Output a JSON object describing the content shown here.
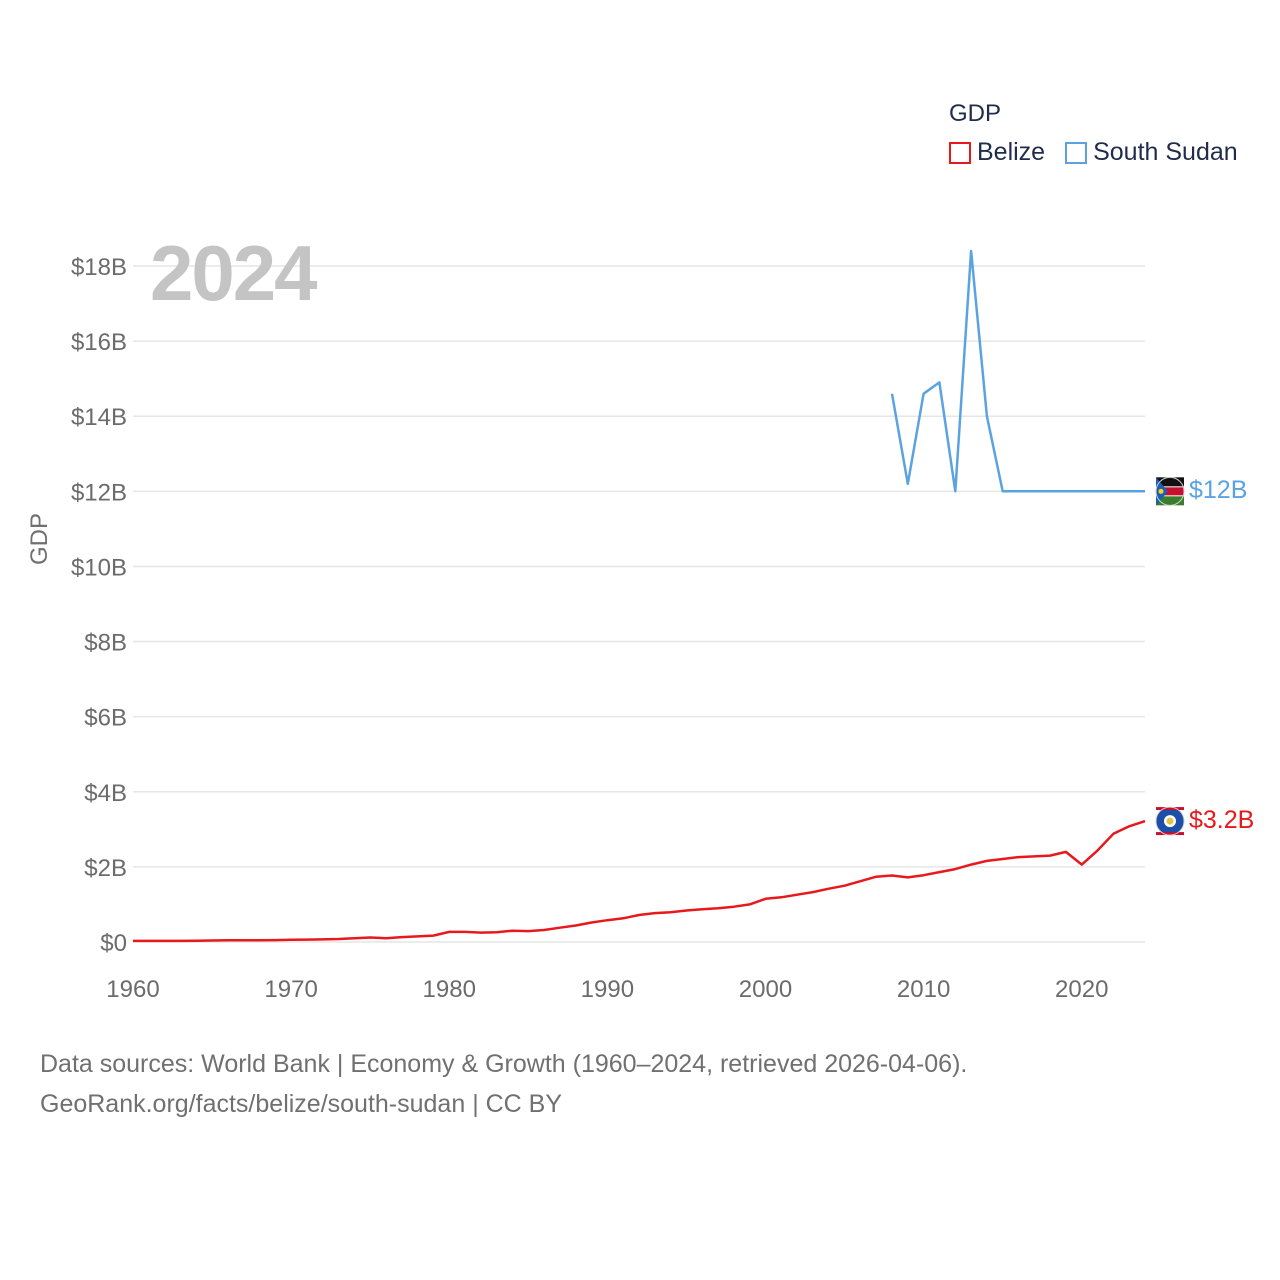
{
  "legend": {
    "title": "GDP",
    "items": [
      {
        "name": "Belize",
        "color": "#e8191c"
      },
      {
        "name": "South Sudan",
        "color": "#5ba3e0"
      }
    ]
  },
  "year_display": "2024",
  "footer": {
    "line1": "Data sources: World Bank | Economy & Growth (1960–2024, retrieved 2026-04-06).",
    "line2": "GeoRank.org/facts/belize/south-sudan | CC BY"
  },
  "chart_data": {
    "type": "line",
    "title": "GDP",
    "xlabel": "",
    "ylabel": "GDP",
    "xlim": [
      1960,
      2024
    ],
    "ylim": [
      0,
      18
    ],
    "y_unit": "billion USD",
    "x_ticks": [
      1960,
      1970,
      1980,
      1990,
      2000,
      2010,
      2020
    ],
    "y_ticks": [
      {
        "value": 0,
        "label": "$0"
      },
      {
        "value": 2,
        "label": "$2B"
      },
      {
        "value": 4,
        "label": "$4B"
      },
      {
        "value": 6,
        "label": "$6B"
      },
      {
        "value": 8,
        "label": "$8B"
      },
      {
        "value": 10,
        "label": "$10B"
      },
      {
        "value": 12,
        "label": "$12B"
      },
      {
        "value": 14,
        "label": "$14B"
      },
      {
        "value": 16,
        "label": "$16B"
      },
      {
        "value": 18,
        "label": "$18B"
      }
    ],
    "grid": true,
    "series": [
      {
        "name": "Belize",
        "color": "#e8191c",
        "end_label": "$3.2B",
        "x": [
          1960,
          1961,
          1962,
          1963,
          1964,
          1965,
          1966,
          1967,
          1968,
          1969,
          1970,
          1971,
          1972,
          1973,
          1974,
          1975,
          1976,
          1977,
          1978,
          1979,
          1980,
          1981,
          1982,
          1983,
          1984,
          1985,
          1986,
          1987,
          1988,
          1989,
          1990,
          1991,
          1992,
          1993,
          1994,
          1995,
          1996,
          1997,
          1998,
          1999,
          2000,
          2001,
          2002,
          2003,
          2004,
          2005,
          2006,
          2007,
          2008,
          2009,
          2010,
          2011,
          2012,
          2013,
          2014,
          2015,
          2016,
          2017,
          2018,
          2019,
          2020,
          2021,
          2022,
          2023,
          2024
        ],
        "values": [
          0.03,
          0.03,
          0.03,
          0.03,
          0.035,
          0.04,
          0.045,
          0.045,
          0.045,
          0.05,
          0.06,
          0.065,
          0.07,
          0.08,
          0.1,
          0.12,
          0.1,
          0.13,
          0.15,
          0.17,
          0.27,
          0.27,
          0.25,
          0.26,
          0.3,
          0.29,
          0.32,
          0.38,
          0.44,
          0.52,
          0.58,
          0.63,
          0.72,
          0.77,
          0.79,
          0.84,
          0.87,
          0.9,
          0.94,
          1.0,
          1.15,
          1.19,
          1.26,
          1.33,
          1.42,
          1.5,
          1.62,
          1.74,
          1.77,
          1.72,
          1.78,
          1.86,
          1.94,
          2.06,
          2.16,
          2.21,
          2.26,
          2.28,
          2.3,
          2.4,
          2.06,
          2.44,
          2.88,
          3.08,
          3.22
        ]
      },
      {
        "name": "South Sudan",
        "color": "#5ba3e0",
        "end_label": "$12B",
        "x": [
          2008,
          2009,
          2010,
          2011,
          2012,
          2013,
          2014,
          2015,
          2016,
          2017,
          2018,
          2019,
          2020,
          2021,
          2022,
          2023,
          2024
        ],
        "values": [
          14.6,
          12.2,
          14.6,
          14.9,
          12.0,
          18.4,
          14.0,
          12.0,
          12.0,
          12.0,
          12.0,
          12.0,
          12.0,
          12.0,
          12.0,
          12.0,
          12.0
        ]
      }
    ]
  }
}
